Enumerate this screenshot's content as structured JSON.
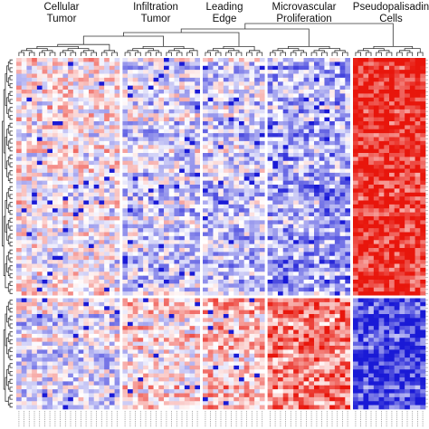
{
  "chart_data": {
    "type": "heatmap",
    "title": "",
    "xlabel": "",
    "ylabel": "",
    "color_scale": {
      "low": "#1a1ad6",
      "mid": "#ffffff",
      "high": "#e8160c"
    },
    "value_range": [
      -1,
      1
    ],
    "legend": "none",
    "dendrogram": {
      "top": true,
      "left": true
    },
    "column_groups": [
      {
        "name": "Cellular Tumor",
        "label_lines": [
          "Cellular",
          "Tumor"
        ],
        "num_columns": 20
      },
      {
        "name": "Infiltration Tumor",
        "label_lines": [
          "Infiltration",
          "Tumor"
        ],
        "num_columns": 15
      },
      {
        "name": "Leading Edge",
        "label_lines": [
          "Leading",
          "Edge"
        ],
        "num_columns": 12
      },
      {
        "name": "Microvascular Proliferation",
        "label_lines": [
          "Microvascular",
          "Proliferation"
        ],
        "num_columns": 16
      },
      {
        "name": "Pseudopalisading Cells",
        "label_lines": [
          "Pseudopalisadin",
          "Cells"
        ],
        "num_columns": 14
      }
    ],
    "row_clusters": [
      {
        "name": "upper cluster",
        "num_rows": 60
      },
      {
        "name": "lower cluster",
        "num_rows": 28
      }
    ],
    "block_mean_values": [
      [
        0.05,
        -0.15,
        -0.2,
        -0.35,
        0.9
      ],
      [
        -0.1,
        0.15,
        0.3,
        0.55,
        -0.8
      ]
    ]
  }
}
